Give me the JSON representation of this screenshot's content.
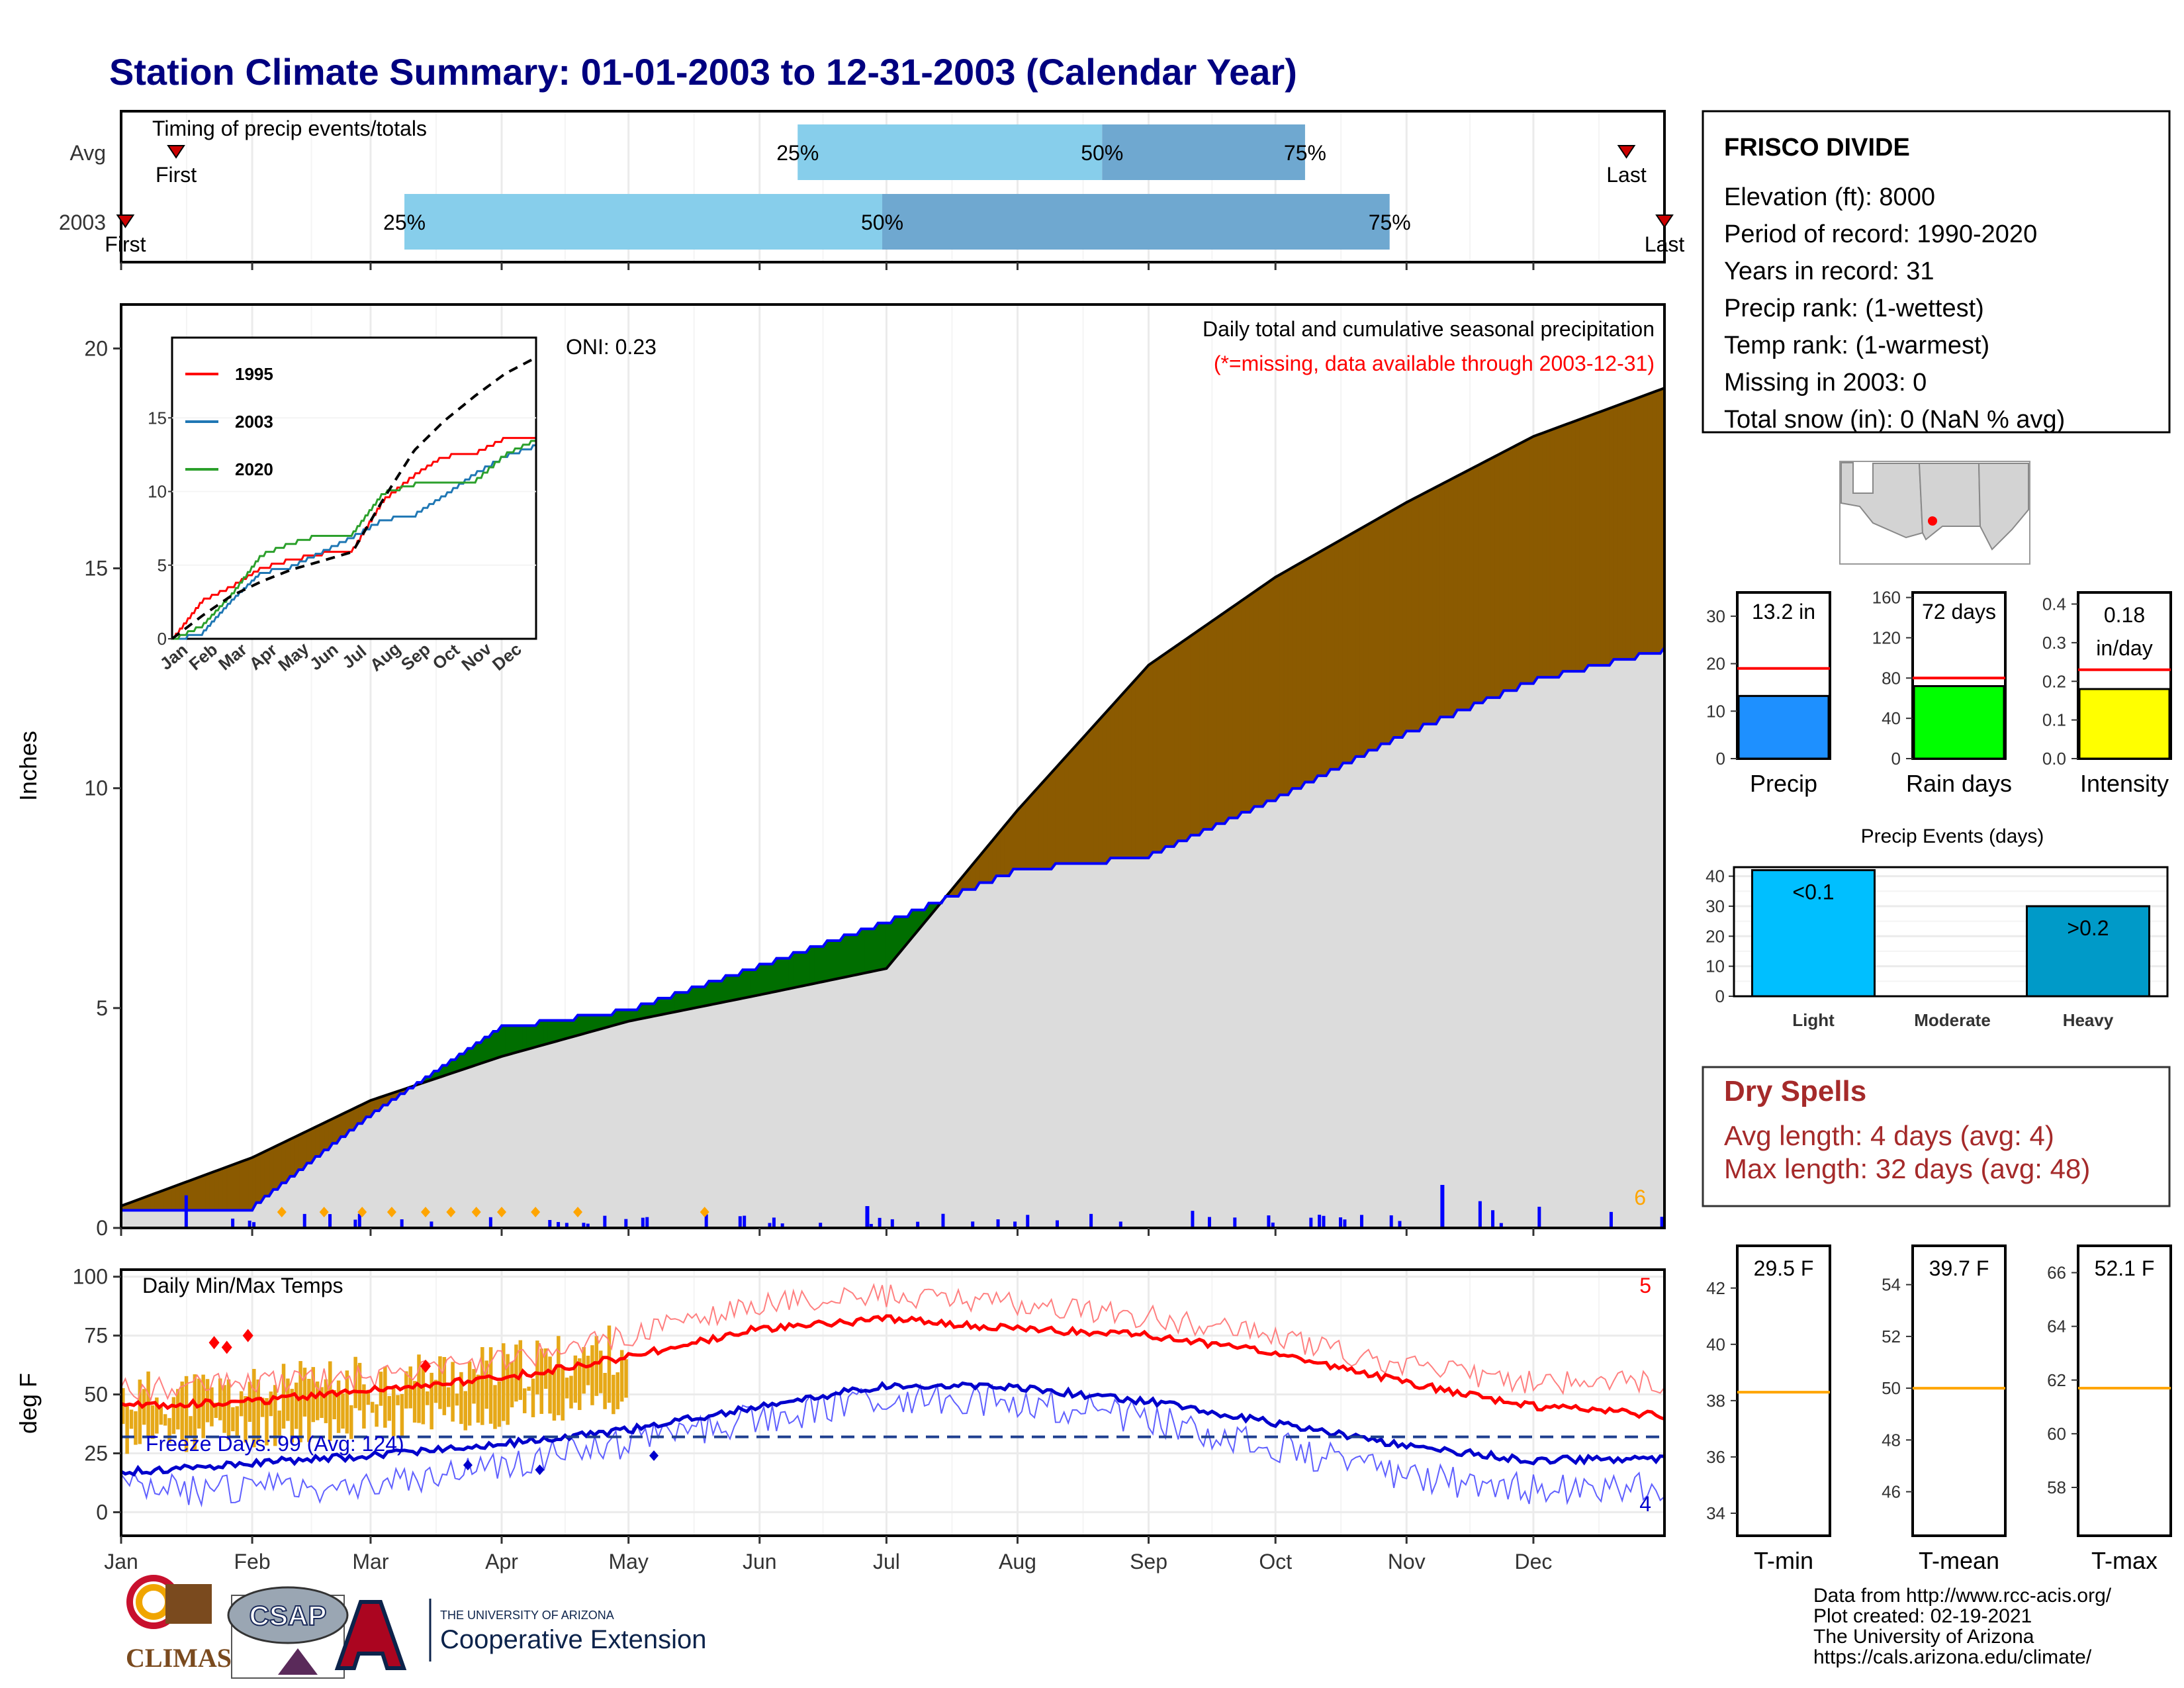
{
  "title": "Station Climate Summary: 01-01-2003 to 12-31-2003 (Calendar Year)",
  "colors": {
    "title": "#000080",
    "cum_fill": "#dcdcdc",
    "above_avg": "#006e00",
    "below_avg": "#8b5a00",
    "precip_blue": "#0000ff",
    "tmax": "#ff0000",
    "tmin": "#0000cc",
    "temp_bar": "#e6a817",
    "avg_line": "#ff0000",
    "rank_line": "#ffa500"
  },
  "months": [
    "Jan",
    "Feb",
    "Mar",
    "Apr",
    "May",
    "Jun",
    "Jul",
    "Aug",
    "Sep",
    "Oct",
    "Nov",
    "Dec"
  ],
  "timing": {
    "title": "Timing of precip events/totals",
    "rows": [
      {
        "label": "Avg",
        "first": "First",
        "last": "Last",
        "p25": "25%",
        "p50": "50%",
        "p75": "75%",
        "first_doy": 13,
        "p25_doy": 160,
        "p50_doy": 232,
        "p75_doy": 280,
        "last_doy": 356
      },
      {
        "label": "2003",
        "first": "First",
        "last": "Last",
        "p25": "25%",
        "p50": "50%",
        "p75": "75%",
        "first_doy": 1,
        "p25_doy": 67,
        "p50_doy": 180,
        "p75_doy": 300,
        "last_doy": 365
      }
    ]
  },
  "main": {
    "ylabel": "Inches",
    "header1": "Daily total and cumulative seasonal precipitation",
    "header2": "(*=missing, data available through 2003-12-31)",
    "oni": "ONI: 0.23",
    "rank_label": "6",
    "yticks": [
      "0",
      "5",
      "10",
      "15",
      "20"
    ]
  },
  "temps": {
    "ylabel": "deg F",
    "title": "Daily Min/Max Temps",
    "freeze": "Freeze Days: 99 (Avg: 124)",
    "tmax_rank": "5",
    "tmin_rank": "4",
    "yticks": [
      "0",
      "25",
      "50",
      "75",
      "100"
    ]
  },
  "info": {
    "station": "FRISCO DIVIDE",
    "lines": [
      "Elevation (ft): 8000",
      "Period of record: 1990-2020",
      "Years in record: 31",
      "Precip rank:  (1-wettest)",
      "Temp rank:  (1-warmest)",
      "Missing in 2003: 0",
      "Total snow (in): 0 (NaN % avg)"
    ]
  },
  "bars": [
    {
      "label": "Precip",
      "value_text": "13.2 in",
      "value": 13.2,
      "avg": 19,
      "ymax": 35,
      "ticks": [
        "0",
        "10",
        "20",
        "30"
      ],
      "tickvals": [
        0,
        10,
        20,
        30
      ],
      "color": "#1e90ff"
    },
    {
      "label": "Rain days",
      "value_text": "72 days",
      "value": 72,
      "avg": 80,
      "ymax": 165,
      "ticks": [
        "0",
        "40",
        "80",
        "120",
        "160"
      ],
      "tickvals": [
        0,
        40,
        80,
        120,
        160
      ],
      "color": "#00ff00"
    },
    {
      "label": "Intensity",
      "value_text": "0.18 in/day",
      "value_line1": "0.18",
      "value_line2": "in/day",
      "value": 0.18,
      "avg": 0.23,
      "ymax": 0.43,
      "ticks": [
        "0.0",
        "0.1",
        "0.2",
        "0.3",
        "0.4"
      ],
      "tickvals": [
        0,
        0.1,
        0.2,
        0.3,
        0.4
      ],
      "color": "#ffff00"
    }
  ],
  "events": {
    "title": "Precip Events (days)",
    "categories": [
      "Light",
      "Moderate",
      "Heavy"
    ],
    "values": [
      42,
      0,
      30
    ],
    "value_labels": [
      "<0.1",
      "",
      ">0.2"
    ],
    "ticks": [
      "0",
      "10",
      "20",
      "30",
      "40"
    ],
    "colors": [
      "#00bfff",
      "#00bfff",
      "#009ac8"
    ]
  },
  "dry": {
    "title": "Dry Spells",
    "avg": "Avg length: 4 days (avg: 4)",
    "max": "Max length: 32 days (avg: 48)"
  },
  "tbars": [
    {
      "label": "T-min",
      "value_text": "29.5 F",
      "rank": 38.3,
      "ymin": 33.2,
      "ymax": 43.5,
      "ticks": [
        "34",
        "36",
        "38",
        "40",
        "42"
      ],
      "tickvals": [
        34,
        36,
        38,
        40,
        42
      ]
    },
    {
      "label": "T-mean",
      "value_text": "39.7 F",
      "rank": 50,
      "ymin": 44.3,
      "ymax": 55.5,
      "ticks": [
        "46",
        "48",
        "50",
        "52",
        "54"
      ],
      "tickvals": [
        46,
        48,
        50,
        52,
        54
      ]
    },
    {
      "label": "T-max",
      "value_text": "52.1 F",
      "rank": 61.7,
      "ymin": 56.2,
      "ymax": 67,
      "ticks": [
        "58",
        "60",
        "62",
        "64",
        "66"
      ],
      "tickvals": [
        58,
        60,
        62,
        64,
        66
      ]
    }
  ],
  "footer": {
    "lines": [
      "Data from http://www.rcc-acis.org/",
      "Plot created: 02-19-2021",
      "The University of Arizona",
      "https://cals.arizona.edu/climate/"
    ],
    "logo1": "CLIMAS",
    "logo2": "CSAP",
    "logo3_top": "THE UNIVERSITY OF ARIZONA",
    "logo3_bottom": "Cooperative Extension"
  },
  "chart_data": [
    {
      "type": "area",
      "title": "Daily total and cumulative seasonal precipitation",
      "xlabel": "",
      "ylabel": "Inches",
      "ylim": [
        0,
        21
      ],
      "x": [
        "Jan",
        "Feb",
        "Mar",
        "Apr",
        "May",
        "Jun",
        "Jul",
        "Aug",
        "Sep",
        "Oct",
        "Nov",
        "Dec",
        "Dec31"
      ],
      "series": [
        {
          "name": "avg",
          "values": [
            0.5,
            1.6,
            2.9,
            3.9,
            4.7,
            5.3,
            5.9,
            9.5,
            12.8,
            14.8,
            16.5,
            18.0,
            19.1
          ]
        },
        {
          "name": "2003",
          "values": [
            0.4,
            0.5,
            2.6,
            4.6,
            5.0,
            6.0,
            7.0,
            8.2,
            8.5,
            9.8,
            11.3,
            12.5,
            13.2
          ]
        }
      ]
    },
    {
      "type": "line",
      "title": "",
      "xlabel": "",
      "ylabel": "",
      "ylim": [
        0,
        20
      ],
      "x": [
        "Jan",
        "Feb",
        "Mar",
        "Apr",
        "May",
        "Jun",
        "Jul",
        "Aug",
        "Sep",
        "Oct",
        "Nov",
        "Dec",
        "Dec31"
      ],
      "series": [
        {
          "name": "1995",
          "values": [
            0,
            2.7,
            3.6,
            4.9,
            5.5,
            5.9,
            6.1,
            9.5,
            11.2,
            12.5,
            12.7,
            13.7,
            13.8
          ]
        },
        {
          "name": "2003",
          "values": [
            0,
            0.5,
            2.6,
            4.6,
            5.0,
            6.0,
            7.0,
            8.2,
            8.5,
            9.8,
            11.3,
            12.5,
            13.2
          ]
        },
        {
          "name": "2020",
          "values": [
            0,
            1.0,
            3.0,
            5.8,
            6.6,
            7.2,
            7.2,
            10.0,
            10.6,
            10.8,
            10.8,
            12.6,
            13.6
          ]
        },
        {
          "name": "",
          "values": [
            0,
            1.6,
            2.9,
            3.9,
            4.7,
            5.3,
            5.9,
            9.5,
            12.8,
            14.8,
            16.5,
            18.0,
            19.1
          ]
        }
      ]
    },
    {
      "type": "line",
      "title": "Daily Min/Max Temps",
      "xlabel": "",
      "ylabel": "deg F",
      "ylim": [
        -10,
        100
      ],
      "x": [
        "Jan",
        "Feb",
        "Mar",
        "Apr",
        "May",
        "Jun",
        "Jul",
        "Aug",
        "Sep",
        "Oct",
        "Nov",
        "Dec",
        "Dec31"
      ],
      "series": [
        {
          "name": "avg max",
          "values": [
            45,
            47,
            52,
            57,
            66,
            78,
            82,
            78,
            75,
            68,
            55,
            45,
            41
          ]
        },
        {
          "name": "avg min",
          "values": [
            17,
            21,
            24,
            29,
            35,
            45,
            54,
            53,
            47,
            38,
            28,
            22,
            23
          ]
        },
        {
          "name": "max",
          "values": [
            52,
            55,
            57,
            64,
            75,
            88,
            92,
            88,
            83,
            74,
            62,
            55,
            55
          ]
        },
        {
          "name": "min",
          "values": [
            10,
            10,
            12,
            20,
            30,
            40,
            48,
            47,
            40,
            28,
            15,
            10,
            10
          ]
        }
      ]
    }
  ]
}
